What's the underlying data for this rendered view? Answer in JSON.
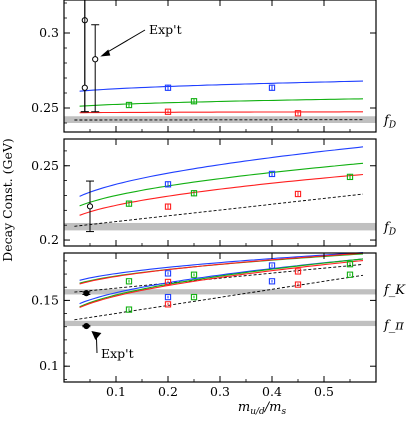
{
  "chart_data": {
    "type": "line",
    "ylabel": "Decay Const. (GeV)",
    "xlabel": "m_{u/d}/m_s",
    "xlim": [
      0,
      0.6
    ],
    "xticks": [
      "0.1",
      "0.2",
      "0.3",
      "0.4",
      "0.5"
    ],
    "panels": [
      {
        "name": "fDs",
        "label": "f_{D_s}",
        "ylim": [
          0.234,
          0.322
        ],
        "yticks": [
          "0.25",
          "0.3"
        ],
        "band": [
          0.24,
          0.2445
        ],
        "dashed": {
          "a": 0.242,
          "b": 0.0004
        },
        "fits": [
          {
            "color": "#1f3fff",
            "a": 0.2592,
            "b": 0.0115
          },
          {
            "color": "#12b012",
            "a": 0.2497,
            "b": 0.0085
          },
          {
            "color": "#ff2020",
            "a": 0.2467,
            "b": 0.001
          }
        ],
        "points": [
          {
            "color": "#1f3fff",
            "x": 0.2,
            "y": 0.2635,
            "err": 0.002
          },
          {
            "color": "#1f3fff",
            "x": 0.4,
            "y": 0.2635,
            "err": 0.002
          },
          {
            "color": "#12b012",
            "x": 0.125,
            "y": 0.252,
            "err": 0.0015
          },
          {
            "color": "#12b012",
            "x": 0.25,
            "y": 0.2545,
            "err": 0.0015
          },
          {
            "color": "#ff2020",
            "x": 0.2,
            "y": 0.2475,
            "err": 0.001
          },
          {
            "color": "#ff2020",
            "x": 0.45,
            "y": 0.2465,
            "err": 0.001
          }
        ],
        "exp": [
          {
            "x": 0.04,
            "y": 0.3085,
            "lo": 0.2475,
            "hi": 0.322
          },
          {
            "x": 0.04,
            "y": 0.2635,
            "lo": 0.2475,
            "hi": 0.322
          },
          {
            "x": 0.06,
            "y": 0.2825,
            "lo": 0.2475,
            "hi": 0.3055
          }
        ],
        "annotation": "Exp't"
      },
      {
        "name": "fD",
        "label": "f_D",
        "ylim": [
          0.196,
          0.268
        ],
        "yticks": [
          "0.2",
          "0.25"
        ],
        "band": [
          0.2065,
          0.2115
        ],
        "dashed": {
          "a": 0.2085,
          "b": 0.039
        },
        "fits": [
          {
            "color": "#1f3fff",
            "a": 0.2195,
            "b": 0.057
          },
          {
            "color": "#12b012",
            "a": 0.2145,
            "b": 0.049
          },
          {
            "color": "#ff2020",
            "a": 0.2085,
            "b": 0.047
          }
        ],
        "points": [
          {
            "color": "#1f3fff",
            "x": 0.2,
            "y": 0.2375,
            "err": 0.002
          },
          {
            "color": "#1f3fff",
            "x": 0.4,
            "y": 0.2445,
            "err": 0.002
          },
          {
            "color": "#12b012",
            "x": 0.125,
            "y": 0.2245,
            "err": 0.002
          },
          {
            "color": "#12b012",
            "x": 0.25,
            "y": 0.2315,
            "err": 0.002
          },
          {
            "color": "#12b012",
            "x": 0.55,
            "y": 0.2425,
            "err": 0.002
          },
          {
            "color": "#ff2020",
            "x": 0.2,
            "y": 0.2225,
            "err": 0.0015
          },
          {
            "color": "#ff2020",
            "x": 0.45,
            "y": 0.231,
            "err": 0.0015
          }
        ],
        "exp": [
          {
            "x": 0.05,
            "y": 0.2227,
            "lo": 0.2057,
            "hi": 0.2397
          }
        ]
      },
      {
        "name": "fKpi",
        "label": "f_K / f_π",
        "labels": [
          "f_K",
          "f_π"
        ],
        "ylim": [
          0.088,
          0.186
        ],
        "yticks": [
          "0.1",
          "0.15"
        ],
        "bands": [
          [
            0.1545,
            0.1585
          ],
          [
            0.1305,
            0.1345
          ]
        ],
        "dashed": [
          {
            "a": 0.1555,
            "b": 0.038
          },
          {
            "a": 0.134,
            "b": 0.061
          }
        ],
        "fits": [
          {
            "color": "#1f3fff",
            "a": 0.159,
            "b": 0.036
          },
          {
            "color": "#12b012",
            "a": 0.1565,
            "b": 0.038
          },
          {
            "color": "#ff2020",
            "a": 0.1555,
            "b": 0.04
          },
          {
            "color": "#1f3fff",
            "a": 0.1375,
            "b": 0.058
          },
          {
            "color": "#12b012",
            "a": 0.1345,
            "b": 0.062
          },
          {
            "color": "#ff2020",
            "a": 0.134,
            "b": 0.061
          }
        ],
        "points": [
          {
            "color": "#1f3fff",
            "x": 0.2,
            "y": 0.1705,
            "err": 0.001
          },
          {
            "color": "#1f3fff",
            "x": 0.4,
            "y": 0.1765,
            "err": 0.001
          },
          {
            "color": "#12b012",
            "x": 0.125,
            "y": 0.1645,
            "err": 0.001
          },
          {
            "color": "#12b012",
            "x": 0.25,
            "y": 0.1695,
            "err": 0.001
          },
          {
            "color": "#12b012",
            "x": 0.55,
            "y": 0.1775,
            "err": 0.001
          },
          {
            "color": "#ff2020",
            "x": 0.2,
            "y": 0.164,
            "err": 0.001
          },
          {
            "color": "#ff2020",
            "x": 0.45,
            "y": 0.172,
            "err": 0.001
          },
          {
            "color": "#1f3fff",
            "x": 0.2,
            "y": 0.1525,
            "err": 0.001
          },
          {
            "color": "#1f3fff",
            "x": 0.4,
            "y": 0.1645,
            "err": 0.001
          },
          {
            "color": "#12b012",
            "x": 0.125,
            "y": 0.143,
            "err": 0.001
          },
          {
            "color": "#12b012",
            "x": 0.25,
            "y": 0.1525,
            "err": 0.001
          },
          {
            "color": "#12b012",
            "x": 0.55,
            "y": 0.1695,
            "err": 0.001
          },
          {
            "color": "#ff2020",
            "x": 0.2,
            "y": 0.147,
            "err": 0.001
          },
          {
            "color": "#ff2020",
            "x": 0.45,
            "y": 0.162,
            "err": 0.001
          }
        ],
        "exp": [
          {
            "x": 0.043,
            "y": 0.1555,
            "lo": 0.1545,
            "hi": 0.1565
          },
          {
            "x": 0.043,
            "y": 0.1305,
            "lo": 0.13,
            "hi": 0.131
          }
        ],
        "annotation": "Exp't"
      }
    ]
  }
}
